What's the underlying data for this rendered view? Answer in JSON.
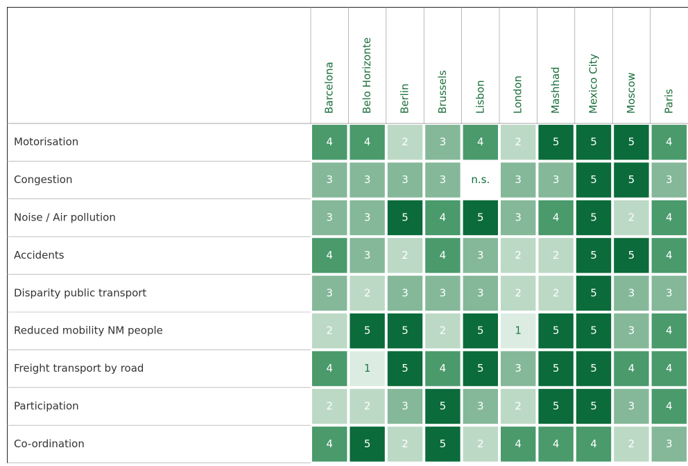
{
  "table": {
    "columns": [
      "Barcelona",
      "Belo Horizonte",
      "Berlin",
      "Brussels",
      "Lisbon",
      "London",
      "Mashhad",
      "Mexico City",
      "Moscow",
      "Paris"
    ],
    "rows": [
      {
        "label": "Motorisation",
        "cells": [
          4,
          4,
          2,
          3,
          4,
          2,
          5,
          5,
          5,
          4
        ]
      },
      {
        "label": "Congestion",
        "cells": [
          3,
          3,
          3,
          3,
          "n.s.",
          3,
          3,
          5,
          5,
          3
        ]
      },
      {
        "label": "Noise / Air pollution",
        "cells": [
          3,
          3,
          5,
          4,
          5,
          3,
          4,
          5,
          2,
          4
        ]
      },
      {
        "label": "Accidents",
        "cells": [
          4,
          3,
          2,
          4,
          3,
          2,
          2,
          5,
          5,
          4
        ]
      },
      {
        "label": "Disparity public transport",
        "cells": [
          3,
          2,
          3,
          3,
          3,
          2,
          2,
          5,
          3,
          3
        ]
      },
      {
        "label": "Reduced mobility NM people",
        "cells": [
          2,
          5,
          5,
          2,
          5,
          1,
          5,
          5,
          3,
          4
        ]
      },
      {
        "label": "Freight transport by road",
        "cells": [
          4,
          1,
          5,
          4,
          5,
          3,
          5,
          5,
          4,
          4
        ]
      },
      {
        "label": "Participation",
        "cells": [
          2,
          2,
          3,
          5,
          3,
          2,
          5,
          5,
          3,
          4
        ]
      },
      {
        "label": "Co-ordination",
        "cells": [
          4,
          5,
          2,
          5,
          2,
          4,
          4,
          4,
          2,
          3
        ]
      }
    ],
    "palette": {
      "1": {
        "fill": "#dcece2",
        "text": "#1e7a44"
      },
      "2": {
        "fill": "#bcd9c6",
        "text": "#ffffff"
      },
      "3": {
        "fill": "#84b899",
        "text": "#ffffff"
      },
      "4": {
        "fill": "#4a9a6c",
        "text": "#ffffff"
      },
      "5": {
        "fill": "#0b6b3a",
        "text": "#ffffff"
      },
      "n.s.": {
        "fill": "#ffffff",
        "text": "#0b6b3a"
      }
    }
  }
}
